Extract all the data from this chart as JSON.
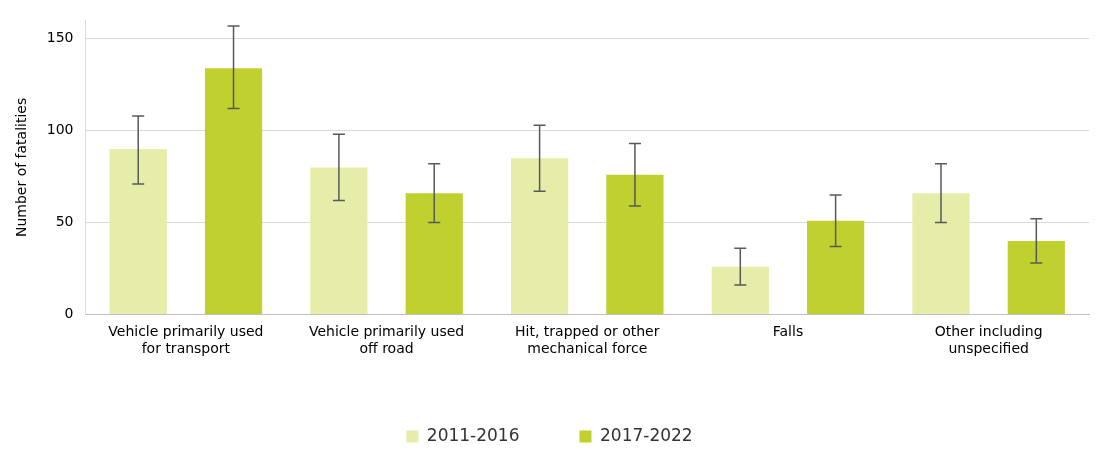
{
  "chart_data": {
    "type": "bar",
    "ylabel": "Number of fatalities",
    "categories": [
      "Vehicle primarily used for transport",
      "Vehicle primarily used off road",
      "Hit, trapped or other mechanical force",
      "Falls",
      "Other including unspecified"
    ],
    "series": [
      {
        "name": "2011-2016",
        "color": "#e6eda8",
        "values": [
          90,
          80,
          85,
          26,
          66
        ],
        "errors": [
          [
            71,
            108
          ],
          [
            62,
            98
          ],
          [
            67,
            103
          ],
          [
            16,
            36
          ],
          [
            50,
            82
          ]
        ]
      },
      {
        "name": "2017-2022",
        "color": "#c0d02e",
        "values": [
          134,
          66,
          76,
          51,
          40
        ],
        "errors": [
          [
            112,
            157
          ],
          [
            50,
            82
          ],
          [
            59,
            93
          ],
          [
            37,
            65
          ],
          [
            28,
            52
          ]
        ]
      }
    ],
    "ylim": [
      0,
      160
    ],
    "yticks": [
      0,
      50,
      100,
      150
    ],
    "grid": "y",
    "legend": "bottom"
  }
}
